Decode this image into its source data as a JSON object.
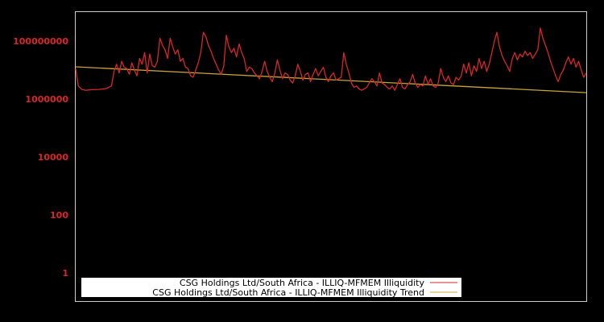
{
  "chart_data": {
    "type": "line",
    "title": "",
    "xlabel": "",
    "ylabel": "",
    "yscale": "log",
    "ylim": [
      0.3,
      800000000
    ],
    "y_ticks": [
      {
        "value": 100000000,
        "label": "100000000"
      },
      {
        "value": 1000000,
        "label": "1000000"
      },
      {
        "value": 10000,
        "label": "10000"
      },
      {
        "value": 100,
        "label": "100"
      },
      {
        "value": 1,
        "label": "1"
      }
    ],
    "grid": false,
    "legend_position": "lower left",
    "series": [
      {
        "name": "CSG Holdings Ltd/South Africa - ILLIQ-MFMEM Illiquidity",
        "color": "#d62728",
        "x_frac": [
          0.0,
          0.005,
          0.012,
          0.02,
          0.03,
          0.045,
          0.06,
          0.07,
          0.075,
          0.08,
          0.085,
          0.09,
          0.095,
          0.1,
          0.105,
          0.11,
          0.115,
          0.12,
          0.125,
          0.13,
          0.135,
          0.14,
          0.145,
          0.15,
          0.155,
          0.16,
          0.165,
          0.17,
          0.175,
          0.18,
          0.185,
          0.19,
          0.195,
          0.2,
          0.205,
          0.21,
          0.215,
          0.22,
          0.225,
          0.23,
          0.235,
          0.24,
          0.245,
          0.25,
          0.255,
          0.26,
          0.265,
          0.27,
          0.275,
          0.28,
          0.285,
          0.29,
          0.295,
          0.3,
          0.305,
          0.31,
          0.315,
          0.32,
          0.325,
          0.33,
          0.335,
          0.34,
          0.345,
          0.35,
          0.355,
          0.36,
          0.365,
          0.37,
          0.375,
          0.38,
          0.385,
          0.39,
          0.395,
          0.4,
          0.405,
          0.41,
          0.415,
          0.42,
          0.425,
          0.43,
          0.435,
          0.44,
          0.445,
          0.45,
          0.455,
          0.46,
          0.465,
          0.47,
          0.475,
          0.48,
          0.485,
          0.49,
          0.495,
          0.5,
          0.505,
          0.51,
          0.515,
          0.52,
          0.525,
          0.53,
          0.535,
          0.54,
          0.545,
          0.55,
          0.555,
          0.56,
          0.565,
          0.57,
          0.575,
          0.58,
          0.585,
          0.59,
          0.595,
          0.6,
          0.605,
          0.61,
          0.615,
          0.62,
          0.625,
          0.63,
          0.635,
          0.64,
          0.645,
          0.65,
          0.655,
          0.66,
          0.665,
          0.67,
          0.675,
          0.68,
          0.685,
          0.69,
          0.695,
          0.7,
          0.705,
          0.71,
          0.715,
          0.72,
          0.725,
          0.73,
          0.735,
          0.74,
          0.745,
          0.75,
          0.755,
          0.76,
          0.765,
          0.77,
          0.775,
          0.78,
          0.785,
          0.79,
          0.795,
          0.8,
          0.805,
          0.81,
          0.815,
          0.82,
          0.825,
          0.83,
          0.835,
          0.84,
          0.845,
          0.85,
          0.855,
          0.86,
          0.865,
          0.87,
          0.875,
          0.88,
          0.885,
          0.89,
          0.895,
          0.9,
          0.905,
          0.91,
          0.915,
          0.92,
          0.925,
          0.93,
          0.935,
          0.94,
          0.945,
          0.95,
          0.955,
          0.96,
          0.965,
          0.97,
          0.975,
          0.98,
          0.985,
          0.99,
          0.995,
          1.0
        ],
        "log10_values": [
          7.05,
          6.45,
          6.33,
          6.3,
          6.32,
          6.33,
          6.36,
          6.45,
          6.95,
          7.2,
          6.9,
          7.3,
          7.1,
          7.05,
          6.85,
          7.25,
          7.0,
          6.8,
          7.4,
          7.2,
          7.6,
          6.9,
          7.55,
          7.15,
          7.1,
          7.3,
          8.1,
          7.85,
          7.7,
          7.4,
          8.1,
          7.8,
          7.55,
          7.7,
          7.3,
          7.4,
          7.1,
          7.05,
          6.8,
          6.75,
          7.0,
          7.25,
          7.6,
          8.3,
          8.15,
          7.85,
          7.65,
          7.4,
          7.2,
          7.0,
          6.85,
          7.15,
          8.2,
          7.8,
          7.6,
          7.75,
          7.45,
          7.9,
          7.6,
          7.4,
          6.95,
          7.1,
          7.05,
          6.9,
          6.8,
          6.7,
          6.95,
          7.3,
          6.95,
          6.75,
          6.6,
          6.9,
          7.35,
          7.0,
          6.7,
          6.9,
          6.85,
          6.65,
          6.55,
          6.8,
          7.2,
          6.95,
          6.65,
          6.85,
          6.9,
          6.6,
          6.85,
          7.05,
          6.8,
          6.95,
          7.1,
          6.75,
          6.6,
          6.8,
          6.9,
          6.65,
          6.7,
          6.75,
          7.6,
          7.2,
          6.9,
          6.55,
          6.4,
          6.45,
          6.35,
          6.3,
          6.35,
          6.4,
          6.55,
          6.7,
          6.6,
          6.45,
          6.9,
          6.55,
          6.5,
          6.4,
          6.35,
          6.45,
          6.3,
          6.5,
          6.7,
          6.4,
          6.35,
          6.5,
          6.6,
          6.85,
          6.55,
          6.4,
          6.5,
          6.45,
          6.8,
          6.5,
          6.7,
          6.45,
          6.4,
          6.55,
          7.05,
          6.75,
          6.6,
          6.8,
          6.55,
          6.5,
          6.75,
          6.65,
          6.8,
          7.2,
          6.9,
          7.25,
          6.8,
          7.15,
          6.95,
          7.4,
          7.05,
          7.3,
          6.95,
          7.2,
          7.6,
          8.0,
          8.3,
          7.8,
          7.5,
          7.3,
          7.15,
          6.95,
          7.4,
          7.6,
          7.35,
          7.55,
          7.45,
          7.65,
          7.5,
          7.6,
          7.4,
          7.55,
          7.7,
          8.45,
          8.1,
          7.85,
          7.6,
          7.3,
          7.05,
          6.8,
          6.6,
          6.85,
          7.0,
          7.25,
          7.45,
          7.2,
          7.4,
          7.1,
          7.3,
          7.0,
          6.75,
          6.9,
          7.1,
          6.8,
          6.45,
          7.9
        ]
      },
      {
        "name": "CSG Holdings Ltd/South Africa - ILLIQ-MFMEM Illiquidity Trend",
        "color": "#c9a43a",
        "x_frac": [
          0.0,
          1.0
        ],
        "log10_values": [
          7.11,
          6.22
        ]
      }
    ]
  },
  "legend": {
    "items": [
      {
        "label": "CSG Holdings Ltd/South Africa - ILLIQ-MFMEM Illiquidity",
        "color": "#d62728"
      },
      {
        "label": "CSG Holdings Ltd/South Africa - ILLIQ-MFMEM Illiquidity Trend",
        "color": "#c9a43a"
      }
    ]
  },
  "colors": {
    "background": "#000000",
    "axes_frame": "#cccccc",
    "tick_label": "#d62728",
    "legend_bg": "#ffffff"
  }
}
